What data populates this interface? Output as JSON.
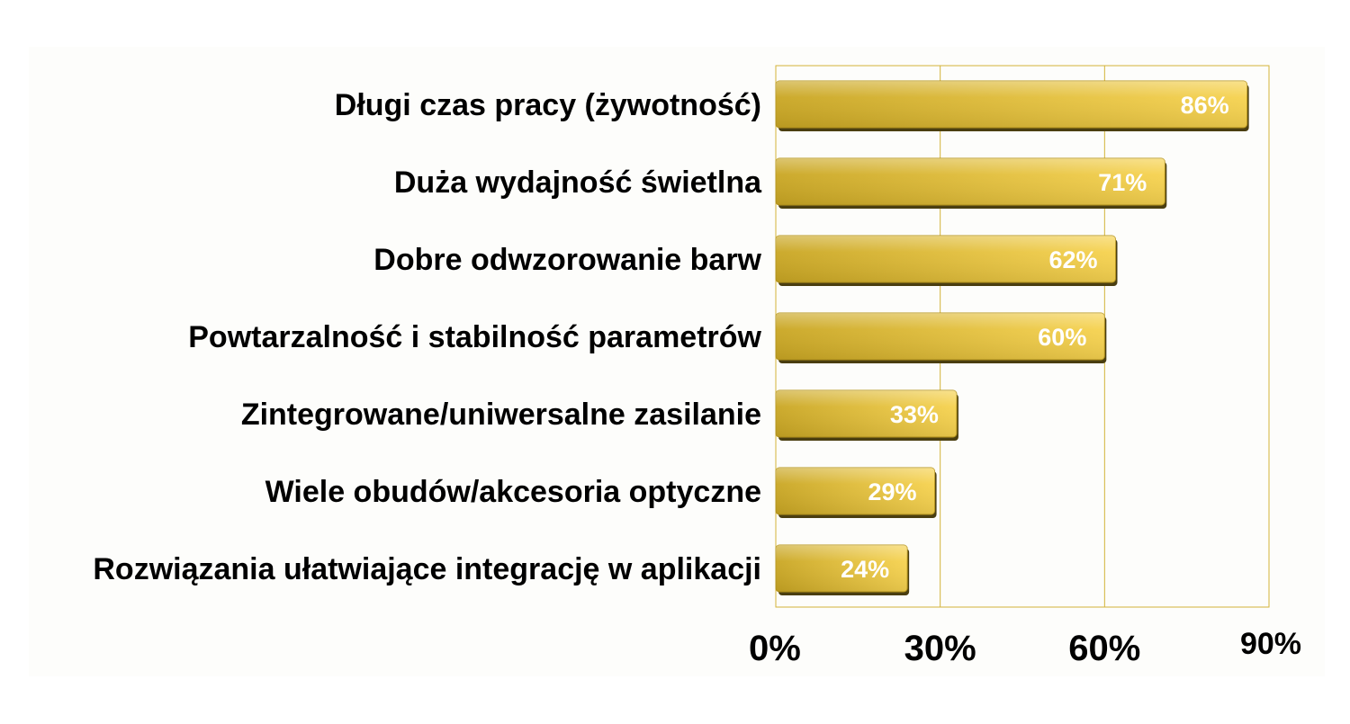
{
  "chart_data": {
    "type": "bar",
    "orientation": "horizontal",
    "categories": [
      "Długi czas pracy (żywotność)",
      "Duża wydajność świetlna",
      "Dobre odwzorowanie barw",
      "Powtarzalność i stabilność parametrów",
      "Zintegrowane/uniwersalne zasilanie",
      "Wiele obudów/akcesoria optyczne",
      "Rozwiązania ułatwiające integrację w aplikacji"
    ],
    "values": [
      86,
      71,
      62,
      60,
      33,
      29,
      24
    ],
    "value_labels": [
      "86%",
      "71%",
      "62%",
      "60%",
      "33%",
      "29%",
      "24%"
    ],
    "xlim": [
      0,
      90
    ],
    "x_ticks": [
      0,
      30,
      60,
      90
    ],
    "x_tick_labels": [
      "0%",
      "30%",
      "60%",
      "90%"
    ],
    "grid": true,
    "legend": "none",
    "colors": {
      "bar_light": "#f6d24f",
      "bar_dark": "#c9a623",
      "bar_shadow": "#4a3e10",
      "gridline": "#d4b43a",
      "plot_background": "#fdfdfb",
      "label_text": "#000000",
      "value_text": "#ffffff"
    }
  }
}
